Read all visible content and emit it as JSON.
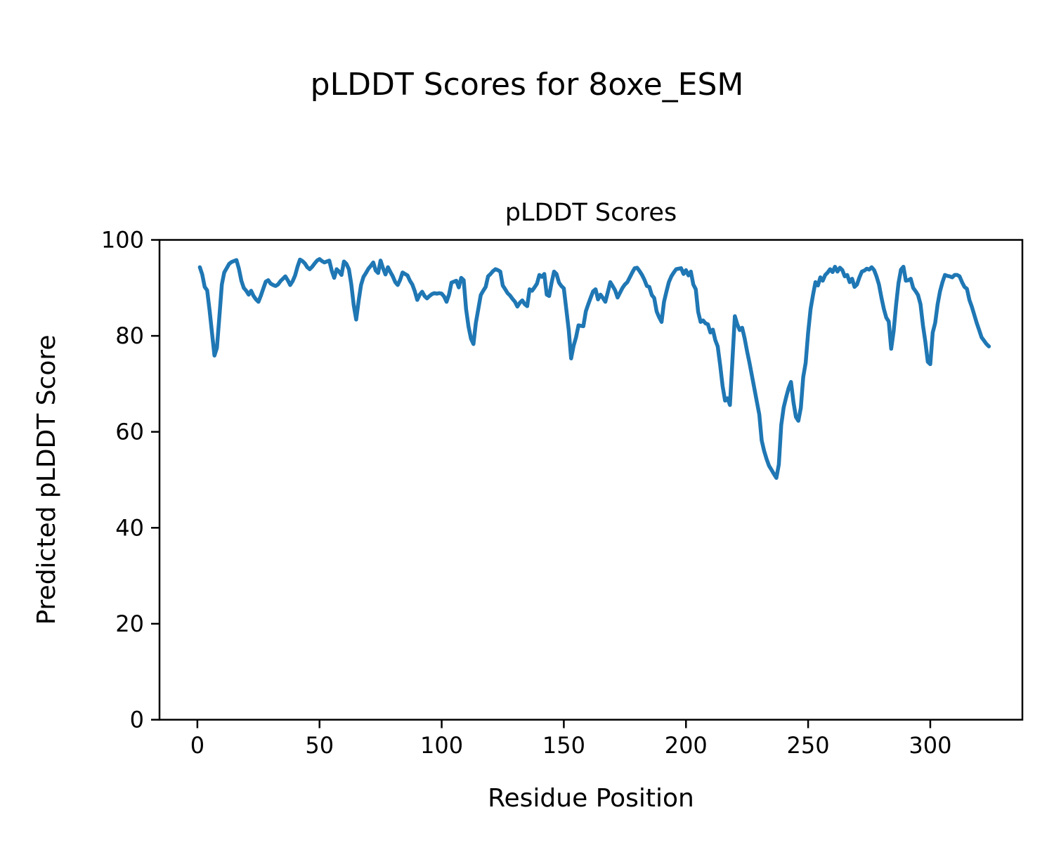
{
  "figure": {
    "suptitle": "pLDDT Scores for 8oxe_ESM",
    "axes_title": "pLDDT Scores",
    "xlabel": "Residue Position",
    "ylabel": "Predicted pLDDT Score"
  },
  "chart_data": {
    "type": "line",
    "title": "pLDDT Scores",
    "suptitle": "pLDDT Scores for 8oxe_ESM",
    "xlabel": "Residue Position",
    "ylabel": "Predicted pLDDT Score",
    "xlim": [
      -15.5,
      337.7
    ],
    "ylim": [
      0,
      100
    ],
    "x_ticks": [
      0,
      50,
      100,
      150,
      200,
      250,
      300
    ],
    "y_ticks": [
      0,
      20,
      40,
      60,
      80,
      100
    ],
    "grid": false,
    "legend_position": "none",
    "line_color": "#1f77b4",
    "axis_color": "#000000",
    "series": [
      {
        "name": "pLDDT",
        "x_start": 1,
        "x_step": 1,
        "n_points": 324,
        "y": [
          94.3,
          92.8,
          90.2,
          89.5,
          85.3,
          80.5,
          75.9,
          77.5,
          84.0,
          90.7,
          93.2,
          94.1,
          95.0,
          95.4,
          95.6,
          95.8,
          94.0,
          91.5,
          90.0,
          89.4,
          88.6,
          89.4,
          88.3,
          87.6,
          87.1,
          88.4,
          89.9,
          91.3,
          91.6,
          90.9,
          90.6,
          90.4,
          90.7,
          91.4,
          91.9,
          92.4,
          91.6,
          90.6,
          91.4,
          92.6,
          94.4,
          95.9,
          95.6,
          95.1,
          94.3,
          93.9,
          94.4,
          95.1,
          95.7,
          96.0,
          95.6,
          95.3,
          95.5,
          95.7,
          93.6,
          92.1,
          93.9,
          93.4,
          92.7,
          95.5,
          95.0,
          93.9,
          90.8,
          86.4,
          83.4,
          87.3,
          90.6,
          92.3,
          93.1,
          94.0,
          94.6,
          95.3,
          93.6,
          93.1,
          95.7,
          94.1,
          92.8,
          94.3,
          93.3,
          92.4,
          91.2,
          90.6,
          91.7,
          93.2,
          92.9,
          92.6,
          91.5,
          90.7,
          89.3,
          87.5,
          88.6,
          89.2,
          88.3,
          87.8,
          88.3,
          88.7,
          88.9,
          88.8,
          88.9,
          88.8,
          88.2,
          87.1,
          88.6,
          91.1,
          91.3,
          91.5,
          90.1,
          92.1,
          91.6,
          85.6,
          81.9,
          79.4,
          78.3,
          82.7,
          85.6,
          88.5,
          89.4,
          90.2,
          92.4,
          92.9,
          93.5,
          93.9,
          93.7,
          93.4,
          90.5,
          89.7,
          88.9,
          88.4,
          87.7,
          87.1,
          86.1,
          86.9,
          87.4,
          86.6,
          86.2,
          89.7,
          89.4,
          90.1,
          90.9,
          92.7,
          92.3,
          92.9,
          88.6,
          88.3,
          91.1,
          93.4,
          92.9,
          91.1,
          90.4,
          89.9,
          85.6,
          81.2,
          75.3,
          77.9,
          79.7,
          82.2,
          82.1,
          82.0,
          85.1,
          86.6,
          88.0,
          89.3,
          89.7,
          87.6,
          88.6,
          87.9,
          87.1,
          89.1,
          91.2,
          90.4,
          89.5,
          88.0,
          89.0,
          90.0,
          90.7,
          91.2,
          92.2,
          93.2,
          94.1,
          94.2,
          93.5,
          92.7,
          91.7,
          90.4,
          90.2,
          88.5,
          87.9,
          85.1,
          83.9,
          82.9,
          87.1,
          89.2,
          91.2,
          92.4,
          93.2,
          93.9,
          94.0,
          94.1,
          92.9,
          93.7,
          92.6,
          93.4,
          90.7,
          89.7,
          85.0,
          82.9,
          83.2,
          82.6,
          82.4,
          80.7,
          81.3,
          79.1,
          77.8,
          73.9,
          69.5,
          66.5,
          67.0,
          65.6,
          74.8,
          84.1,
          82.4,
          81.2,
          81.7,
          79.5,
          76.8,
          74.4,
          71.7,
          69.0,
          66.3,
          63.6,
          58.2,
          56.0,
          54.3,
          52.9,
          52.1,
          51.2,
          50.4,
          53.2,
          61.4,
          65.1,
          67.2,
          69.1,
          70.4,
          66.2,
          63.1,
          62.3,
          65.0,
          71.4,
          74.4,
          80.7,
          85.6,
          88.5,
          91.2,
          90.5,
          92.2,
          91.5,
          92.7,
          93.2,
          93.9,
          93.3,
          94.4,
          93.4,
          94.2,
          93.7,
          92.4,
          92.7,
          91.2,
          91.9,
          90.2,
          90.7,
          92.2,
          93.4,
          93.6,
          94.0,
          93.8,
          94.3,
          93.7,
          92.4,
          90.7,
          88.0,
          85.6,
          83.8,
          83.0,
          77.3,
          81.0,
          86.5,
          91.0,
          93.8,
          94.4,
          91.5,
          91.6,
          91.9,
          90.0,
          89.3,
          88.5,
          86.6,
          82.2,
          78.7,
          74.6,
          74.1,
          80.7,
          82.7,
          86.6,
          89.3,
          91.2,
          92.7,
          92.5,
          92.4,
          92.2,
          92.7,
          92.7,
          92.4,
          91.2,
          90.2,
          89.8,
          87.5,
          86.1,
          84.4,
          82.7,
          81.2,
          79.7,
          79.0,
          78.3,
          77.8
        ]
      }
    ]
  }
}
